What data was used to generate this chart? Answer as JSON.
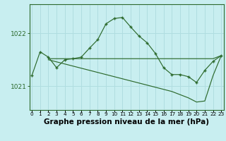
{
  "title": "Graphe pression niveau de la mer (hPa)",
  "background_color": "#c8eef0",
  "grid_color": "#b0dde0",
  "line_color": "#2d6a2d",
  "x_values": [
    0,
    1,
    2,
    3,
    4,
    5,
    6,
    7,
    8,
    9,
    10,
    11,
    12,
    13,
    14,
    15,
    16,
    17,
    18,
    19,
    20,
    21,
    22,
    23
  ],
  "y_main": [
    1021.2,
    1021.65,
    1021.55,
    1021.35,
    1021.5,
    1021.52,
    1021.55,
    1021.72,
    1021.88,
    1022.18,
    1022.28,
    1022.3,
    1022.12,
    1021.95,
    1021.82,
    1021.62,
    1021.35,
    1021.22,
    1021.22,
    1021.18,
    1021.07,
    1021.3,
    1021.47,
    1021.58
  ],
  "y_horiz": [
    1021.52,
    1021.52,
    1021.52,
    1021.52,
    1021.52,
    1021.52,
    1021.52,
    1021.52,
    1021.52,
    1021.52,
    1021.52,
    1021.52,
    1021.52,
    1021.52,
    1021.52,
    1021.52,
    1021.52,
    1021.52,
    1021.52,
    1021.52,
    1021.52,
    1021.52,
    1021.52,
    1021.58
  ],
  "y_diag": [
    1021.52,
    1021.52,
    1021.5,
    1021.46,
    1021.42,
    1021.38,
    1021.34,
    1021.3,
    1021.26,
    1021.22,
    1021.18,
    1021.14,
    1021.1,
    1021.06,
    1021.02,
    1020.98,
    1020.94,
    1020.9,
    1020.84,
    1020.78,
    1020.7,
    1020.72,
    1021.2,
    1021.58
  ],
  "horiz_start_x": 2,
  "diag_start_x": 2,
  "ylim": [
    1020.55,
    1022.55
  ],
  "yticks": [
    1021.0,
    1022.0
  ],
  "xlim": [
    -0.3,
    23.3
  ],
  "title_fontsize": 7.5
}
